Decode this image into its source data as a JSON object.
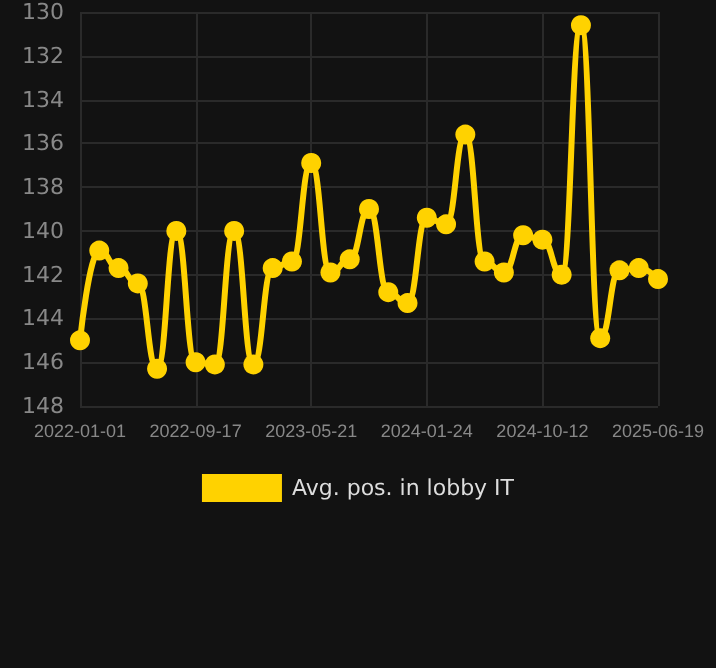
{
  "chart_data": {
    "type": "line",
    "categories": [
      "2022-01-01",
      null,
      null,
      null,
      null,
      null,
      "2022-09-17",
      null,
      null,
      null,
      null,
      null,
      "2023-05-21",
      null,
      null,
      null,
      null,
      null,
      "2024-01-24",
      null,
      null,
      null,
      null,
      null,
      "2024-10-12",
      null,
      null,
      null,
      null,
      null,
      "2025-06-19"
    ],
    "series": [
      {
        "name": "Avg. pos. in lobby IT",
        "color": "#ffd200",
        "values": [
          145.0,
          140.9,
          141.7,
          142.4,
          146.3,
          140.0,
          146.0,
          146.1,
          140.0,
          146.1,
          141.7,
          141.4,
          136.9,
          141.9,
          141.3,
          139.0,
          142.8,
          143.3,
          139.4,
          139.7,
          135.6,
          141.4,
          141.9,
          140.2,
          140.4,
          142.0,
          130.6,
          144.9,
          141.8,
          141.7,
          142.2
        ]
      }
    ],
    "ylim": [
      148,
      130
    ],
    "yticks": [
      130,
      132,
      134,
      136,
      138,
      140,
      142,
      144,
      146,
      148
    ],
    "grid": true,
    "legend": "bottom",
    "marker": "circle",
    "line_style": "solid"
  }
}
